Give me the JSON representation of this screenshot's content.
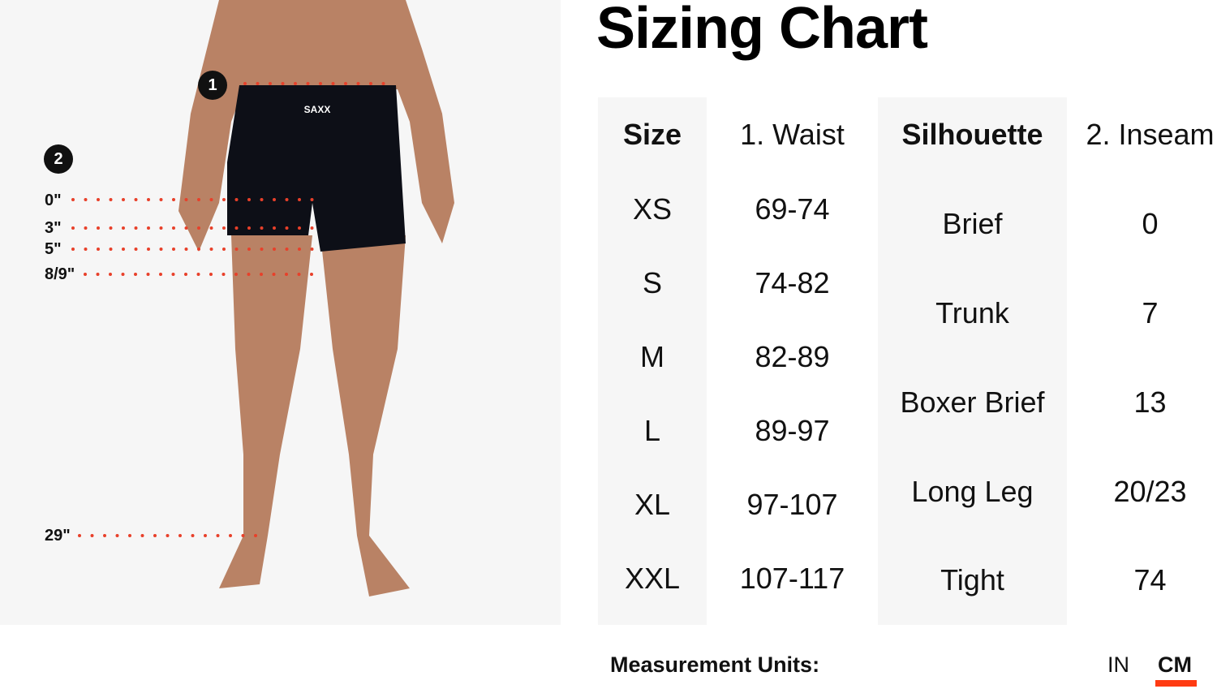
{
  "photo": {
    "brand_logo": "SAXX",
    "markers": [
      "1",
      "2"
    ],
    "inseam_labels": [
      "0\"",
      "3\"",
      "5\"",
      "8/9\"",
      "29\""
    ],
    "dot_color": "#e8402a"
  },
  "title": "Sizing Chart",
  "table": {
    "size_header": "Size",
    "waist_header": "1.  Waist",
    "silhouette_header": "Silhouette",
    "inseam_header": "2.  Inseam",
    "sizes": [
      {
        "size": "XS",
        "waist": "69-74"
      },
      {
        "size": "S",
        "waist": "74-82"
      },
      {
        "size": "M",
        "waist": "82-89"
      },
      {
        "size": "L",
        "waist": "89-97"
      },
      {
        "size": "XL",
        "waist": "97-107"
      },
      {
        "size": "XXL",
        "waist": "107-117"
      }
    ],
    "silhouettes": [
      {
        "name": "Brief",
        "inseam": "0"
      },
      {
        "name": "Trunk",
        "inseam": "7"
      },
      {
        "name": "Boxer Brief",
        "inseam": "13"
      },
      {
        "name": "Long Leg",
        "inseam": "20/23"
      },
      {
        "name": "Tight",
        "inseam": "74"
      }
    ]
  },
  "units": {
    "label": "Measurement Units:",
    "options": [
      "IN",
      "CM"
    ],
    "selected": "CM",
    "accent": "#ff3b12"
  }
}
